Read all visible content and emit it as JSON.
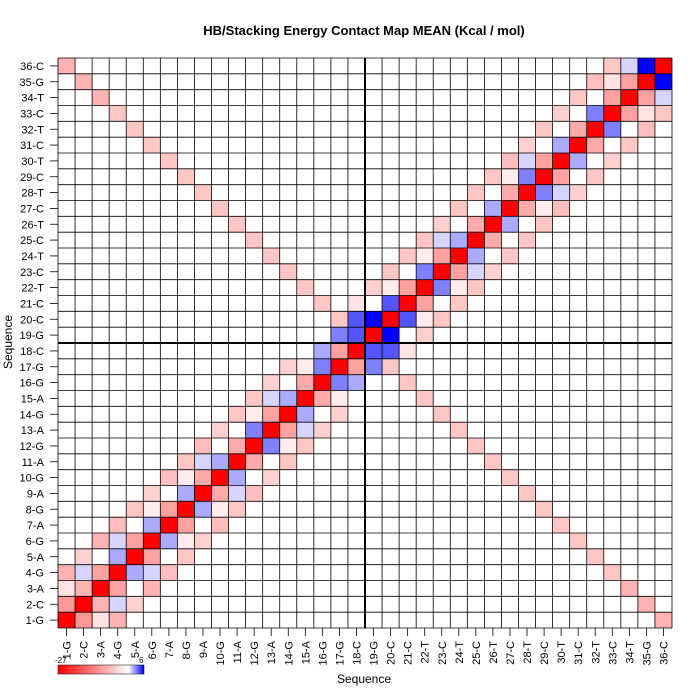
{
  "chart_data": {
    "type": "heatmap",
    "title": "HB/Stacking Energy Contact Map MEAN (Kcal / mol)",
    "xlabel": "Sequence",
    "ylabel": "Sequence",
    "labels": [
      "1-G",
      "2-C",
      "3-A",
      "4-G",
      "5-A",
      "6-G",
      "7-A",
      "8-G",
      "9-A",
      "10-G",
      "11-A",
      "12-G",
      "13-A",
      "14-G",
      "15-A",
      "16-G",
      "17-G",
      "18-C",
      "19-G",
      "20-C",
      "21-C",
      "22-T",
      "23-C",
      "24-T",
      "25-C",
      "26-T",
      "27-C",
      "28-T",
      "29-C",
      "30-T",
      "31-C",
      "32-T",
      "33-C",
      "34-T",
      "35-G",
      "36-C"
    ],
    "colorbar": {
      "min": -27,
      "max": 6,
      "min_label": "-27",
      "max_label": "6",
      "colors": [
        "#ff0000",
        "#ffffff",
        "#0000ff"
      ]
    },
    "divider_after_index": 18,
    "cells": [
      [
        1,
        1,
        -27
      ],
      [
        2,
        2,
        -27
      ],
      [
        3,
        3,
        -27
      ],
      [
        4,
        4,
        -27
      ],
      [
        5,
        5,
        -27
      ],
      [
        6,
        6,
        -27
      ],
      [
        7,
        7,
        -27
      ],
      [
        8,
        8,
        -27
      ],
      [
        9,
        9,
        -27
      ],
      [
        10,
        10,
        -27
      ],
      [
        11,
        11,
        -27
      ],
      [
        12,
        12,
        -27
      ],
      [
        13,
        13,
        -27
      ],
      [
        14,
        14,
        -27
      ],
      [
        15,
        15,
        -27
      ],
      [
        16,
        16,
        -27
      ],
      [
        17,
        17,
        -27
      ],
      [
        18,
        18,
        -27
      ],
      [
        19,
        19,
        -27
      ],
      [
        20,
        20,
        -27
      ],
      [
        21,
        21,
        -27
      ],
      [
        22,
        22,
        -27
      ],
      [
        23,
        23,
        -27
      ],
      [
        24,
        24,
        -27
      ],
      [
        25,
        25,
        -27
      ],
      [
        26,
        26,
        -27
      ],
      [
        27,
        27,
        -27
      ],
      [
        28,
        28,
        -27
      ],
      [
        29,
        29,
        -27
      ],
      [
        30,
        30,
        -27
      ],
      [
        31,
        31,
        -27
      ],
      [
        32,
        32,
        -27
      ],
      [
        33,
        33,
        -27
      ],
      [
        34,
        34,
        -27
      ],
      [
        35,
        35,
        -27
      ],
      [
        36,
        36,
        -27
      ],
      [
        1,
        2,
        -11
      ],
      [
        2,
        1,
        -11
      ],
      [
        2,
        3,
        -8
      ],
      [
        3,
        2,
        -8
      ],
      [
        3,
        4,
        -10
      ],
      [
        4,
        3,
        -10
      ],
      [
        4,
        5,
        2
      ],
      [
        5,
        4,
        2
      ],
      [
        5,
        6,
        -10
      ],
      [
        6,
        5,
        -10
      ],
      [
        6,
        7,
        2
      ],
      [
        7,
        6,
        2
      ],
      [
        7,
        8,
        -10
      ],
      [
        8,
        7,
        -10
      ],
      [
        8,
        9,
        2
      ],
      [
        9,
        8,
        2
      ],
      [
        9,
        10,
        -9
      ],
      [
        10,
        9,
        -9
      ],
      [
        10,
        11,
        2
      ],
      [
        11,
        10,
        2
      ],
      [
        11,
        12,
        -9
      ],
      [
        12,
        11,
        -9
      ],
      [
        12,
        13,
        3
      ],
      [
        13,
        12,
        3
      ],
      [
        13,
        14,
        -10
      ],
      [
        14,
        13,
        -10
      ],
      [
        14,
        15,
        2
      ],
      [
        15,
        14,
        2
      ],
      [
        15,
        16,
        -9
      ],
      [
        16,
        15,
        -9
      ],
      [
        16,
        17,
        3
      ],
      [
        17,
        16,
        3
      ],
      [
        17,
        18,
        -10
      ],
      [
        18,
        17,
        -10
      ],
      [
        18,
        19,
        4
      ],
      [
        19,
        18,
        4
      ],
      [
        19,
        20,
        6
      ],
      [
        20,
        19,
        6
      ],
      [
        20,
        21,
        4
      ],
      [
        21,
        20,
        4
      ],
      [
        21,
        22,
        -10
      ],
      [
        22,
        21,
        -10
      ],
      [
        22,
        23,
        3
      ],
      [
        23,
        22,
        3
      ],
      [
        23,
        24,
        -10
      ],
      [
        24,
        23,
        -10
      ],
      [
        24,
        25,
        2
      ],
      [
        25,
        24,
        2
      ],
      [
        25,
        26,
        -9
      ],
      [
        26,
        25,
        -9
      ],
      [
        26,
        27,
        2
      ],
      [
        27,
        26,
        2
      ],
      [
        27,
        28,
        -9
      ],
      [
        28,
        27,
        -9
      ],
      [
        28,
        29,
        3
      ],
      [
        29,
        28,
        3
      ],
      [
        29,
        30,
        -10
      ],
      [
        30,
        29,
        -10
      ],
      [
        30,
        31,
        2
      ],
      [
        31,
        30,
        2
      ],
      [
        31,
        32,
        -9
      ],
      [
        32,
        31,
        -9
      ],
      [
        32,
        33,
        3
      ],
      [
        33,
        32,
        3
      ],
      [
        33,
        34,
        -10
      ],
      [
        34,
        33,
        -10
      ],
      [
        34,
        35,
        -10
      ],
      [
        35,
        34,
        -10
      ],
      [
        35,
        36,
        6
      ],
      [
        36,
        35,
        6
      ],
      [
        1,
        36,
        -8
      ],
      [
        36,
        1,
        -8
      ],
      [
        2,
        35,
        -8
      ],
      [
        35,
        2,
        -8
      ],
      [
        3,
        34,
        -8
      ],
      [
        34,
        3,
        -8
      ],
      [
        4,
        33,
        -6
      ],
      [
        33,
        4,
        -6
      ],
      [
        5,
        32,
        -6
      ],
      [
        32,
        5,
        -6
      ],
      [
        6,
        31,
        -6
      ],
      [
        31,
        6,
        -6
      ],
      [
        7,
        30,
        -6
      ],
      [
        30,
        7,
        -6
      ],
      [
        8,
        29,
        -6
      ],
      [
        29,
        8,
        -6
      ],
      [
        9,
        28,
        -6
      ],
      [
        28,
        9,
        -6
      ],
      [
        10,
        27,
        -6
      ],
      [
        27,
        10,
        -6
      ],
      [
        11,
        26,
        -6
      ],
      [
        26,
        11,
        -6
      ],
      [
        12,
        25,
        -6
      ],
      [
        25,
        12,
        -6
      ],
      [
        13,
        24,
        -6
      ],
      [
        24,
        13,
        -6
      ],
      [
        14,
        23,
        -6
      ],
      [
        23,
        14,
        -6
      ],
      [
        15,
        22,
        -6
      ],
      [
        22,
        15,
        -6
      ],
      [
        16,
        21,
        -6
      ],
      [
        21,
        16,
        -6
      ],
      [
        17,
        20,
        -6
      ],
      [
        20,
        17,
        -6
      ],
      [
        4,
        1,
        -8
      ],
      [
        1,
        4,
        -8
      ],
      [
        5,
        2,
        -5
      ],
      [
        2,
        5,
        -5
      ],
      [
        6,
        3,
        -8
      ],
      [
        3,
        6,
        -8
      ],
      [
        7,
        4,
        -7
      ],
      [
        4,
        7,
        -7
      ],
      [
        8,
        5,
        -6
      ],
      [
        5,
        8,
        -6
      ],
      [
        9,
        6,
        -5
      ],
      [
        6,
        9,
        -5
      ],
      [
        10,
        7,
        -7
      ],
      [
        7,
        10,
        -7
      ],
      [
        11,
        8,
        -6
      ],
      [
        8,
        11,
        -6
      ],
      [
        12,
        9,
        -7
      ],
      [
        9,
        12,
        -7
      ],
      [
        13,
        10,
        -5
      ],
      [
        10,
        13,
        -5
      ],
      [
        14,
        11,
        -6
      ],
      [
        11,
        14,
        -6
      ],
      [
        15,
        12,
        -6
      ],
      [
        12,
        15,
        -6
      ],
      [
        16,
        13,
        -5
      ],
      [
        13,
        16,
        -5
      ],
      [
        17,
        14,
        -5
      ],
      [
        14,
        17,
        -5
      ],
      [
        22,
        19,
        -5
      ],
      [
        19,
        22,
        -5
      ],
      [
        23,
        20,
        -6
      ],
      [
        20,
        23,
        -6
      ],
      [
        24,
        21,
        -6
      ],
      [
        21,
        24,
        -6
      ],
      [
        25,
        22,
        -6
      ],
      [
        22,
        25,
        -6
      ],
      [
        26,
        23,
        -5
      ],
      [
        23,
        26,
        -5
      ],
      [
        27,
        24,
        -6
      ],
      [
        24,
        27,
        -6
      ],
      [
        28,
        25,
        -6
      ],
      [
        25,
        28,
        -6
      ],
      [
        29,
        26,
        -6
      ],
      [
        26,
        29,
        -6
      ],
      [
        30,
        27,
        -7
      ],
      [
        27,
        30,
        -7
      ],
      [
        31,
        28,
        -5
      ],
      [
        28,
        31,
        -5
      ],
      [
        32,
        29,
        -6
      ],
      [
        29,
        32,
        -6
      ],
      [
        33,
        30,
        -5
      ],
      [
        30,
        33,
        -5
      ],
      [
        34,
        31,
        -6
      ],
      [
        31,
        34,
        -6
      ],
      [
        35,
        32,
        -7
      ],
      [
        32,
        35,
        -7
      ],
      [
        36,
        33,
        -6
      ],
      [
        33,
        36,
        -6
      ],
      [
        17,
        19,
        3
      ],
      [
        19,
        17,
        3
      ],
      [
        18,
        20,
        4
      ],
      [
        20,
        18,
        4
      ],
      [
        16,
        18,
        2
      ],
      [
        18,
        16,
        2
      ],
      [
        17,
        17,
        -27
      ],
      [
        3,
        1,
        -3
      ],
      [
        1,
        3,
        -3
      ],
      [
        8,
        6,
        -2
      ],
      [
        6,
        8,
        -2
      ],
      [
        10,
        8,
        -2
      ],
      [
        8,
        10,
        -2
      ],
      [
        14,
        12,
        -2
      ],
      [
        12,
        14,
        -2
      ],
      [
        24,
        22,
        -2
      ],
      [
        22,
        24,
        -2
      ],
      [
        29,
        27,
        -2
      ],
      [
        27,
        29,
        -2
      ],
      [
        33,
        35,
        -3
      ],
      [
        35,
        33,
        -3
      ],
      [
        2,
        4,
        1
      ],
      [
        4,
        2,
        1
      ],
      [
        6,
        4,
        1
      ],
      [
        4,
        6,
        1
      ],
      [
        9,
        11,
        1
      ],
      [
        11,
        9,
        1
      ],
      [
        13,
        15,
        1
      ],
      [
        15,
        13,
        1
      ],
      [
        23,
        25,
        1
      ],
      [
        25,
        23,
        1
      ],
      [
        28,
        30,
        1
      ],
      [
        30,
        28,
        1
      ],
      [
        34,
        36,
        1
      ],
      [
        36,
        34,
        1
      ],
      [
        15,
        17,
        -2
      ],
      [
        17,
        15,
        -2
      ],
      [
        20,
        22,
        -2
      ],
      [
        22,
        20,
        -2
      ],
      [
        18,
        21,
        -3
      ],
      [
        21,
        18,
        -3
      ]
    ]
  }
}
